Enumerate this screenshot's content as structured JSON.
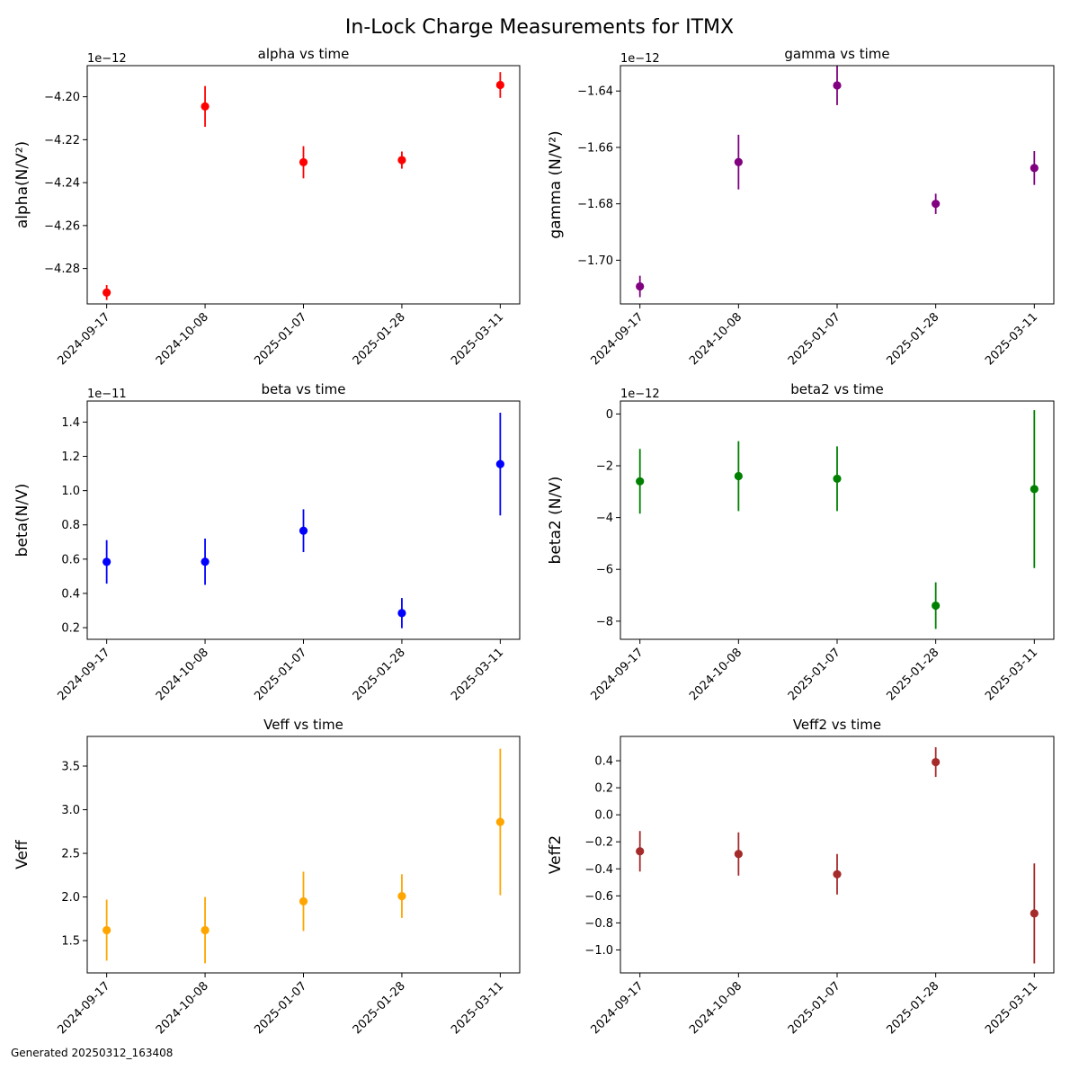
{
  "figure": {
    "title": "In-Lock Charge Measurements for ITMX",
    "footer": "Generated 20250312_163408"
  },
  "chart_data": [
    {
      "type": "scatter",
      "title": "alpha vs time",
      "ylabel": "alpha(N/V²)",
      "offset_label": "1e−12",
      "x": [
        "2024-09-17",
        "2024-10-08",
        "2025-01-07",
        "2025-01-28",
        "2025-03-11"
      ],
      "y": [
        -4.2912e-12,
        -4.2045e-12,
        -4.2305e-12,
        -4.2295e-12,
        -4.1945e-12
      ],
      "yerr": [
        3.5e-15,
        9.5e-15,
        7.5e-15,
        4e-15,
        6e-15
      ],
      "color": "#ff0000",
      "ylim": [
        -4.2965e-12,
        -4.1855e-12
      ],
      "yticks": [
        -4.28e-12,
        -4.26e-12,
        -4.24e-12,
        -4.22e-12,
        -4.2e-12
      ],
      "yticklabels": [
        "−4.28",
        "−4.26",
        "−4.24",
        "−4.22",
        "−4.20"
      ]
    },
    {
      "type": "scatter",
      "title": "gamma vs time",
      "ylabel": "gamma (N/V²)",
      "offset_label": "1e−12",
      "x": [
        "2024-09-17",
        "2024-10-08",
        "2025-01-07",
        "2025-01-28",
        "2025-03-11"
      ],
      "y": [
        -1.7093e-12,
        -1.6652e-12,
        -1.638e-12,
        -1.68e-12,
        -1.6673e-12
      ],
      "yerr": [
        3.8e-15,
        9.7e-15,
        7e-15,
        3.6e-15,
        6e-15
      ],
      "color": "#800080",
      "ylim": [
        -1.7155e-12,
        -1.631e-12
      ],
      "yticks": [
        -1.7e-12,
        -1.68e-12,
        -1.66e-12,
        -1.64e-12
      ],
      "yticklabels": [
        "−1.70",
        "−1.68",
        "−1.66",
        "−1.64"
      ]
    },
    {
      "type": "scatter",
      "title": "beta vs time",
      "ylabel": "beta(N/V)",
      "offset_label": "1e−11",
      "x": [
        "2024-09-17",
        "2024-10-08",
        "2025-01-07",
        "2025-01-28",
        "2025-03-11"
      ],
      "y": [
        5.84e-12,
        5.85e-12,
        7.66e-12,
        2.85e-12,
        1.155e-11
      ],
      "yerr": [
        1.27e-12,
        1.35e-12,
        1.25e-12,
        8.8e-13,
        3e-12
      ],
      "color": "#0000ff",
      "ylim": [
        1.32e-12,
        1.523e-11
      ],
      "yticks": [
        2e-12,
        4e-12,
        6e-12,
        8e-12,
        1e-11,
        1.2e-11,
        1.4e-11
      ],
      "yticklabels": [
        "0.2",
        "0.4",
        "0.6",
        "0.8",
        "1.0",
        "1.2",
        "1.4"
      ]
    },
    {
      "type": "scatter",
      "title": "beta2 vs time",
      "ylabel": "beta2 (N/V)",
      "offset_label": "1e−12",
      "x": [
        "2024-09-17",
        "2024-10-08",
        "2025-01-07",
        "2025-01-28",
        "2025-03-11"
      ],
      "y": [
        -2.6e-12,
        -2.4e-12,
        -2.5e-12,
        -7.4e-12,
        -2.9e-12
      ],
      "yerr": [
        1.25e-12,
        1.35e-12,
        1.25e-12,
        9e-13,
        3.05e-12
      ],
      "color": "#008000",
      "ylim": [
        -8.7e-12,
        5e-13
      ],
      "yticks": [
        -8e-12,
        -6e-12,
        -4e-12,
        -2e-12,
        0
      ],
      "yticklabels": [
        "−8",
        "−6",
        "−4",
        "−2",
        "0"
      ]
    },
    {
      "type": "scatter",
      "title": "Veff vs time",
      "ylabel": "Veff",
      "offset_label": "",
      "x": [
        "2024-09-17",
        "2024-10-08",
        "2025-01-07",
        "2025-01-28",
        "2025-03-11"
      ],
      "y": [
        1.62,
        1.62,
        1.95,
        2.01,
        2.86
      ],
      "yerr": [
        0.35,
        0.38,
        0.34,
        0.25,
        0.84
      ],
      "color": "#ffa500",
      "ylim": [
        1.13,
        3.84
      ],
      "yticks": [
        1.5,
        2.0,
        2.5,
        3.0,
        3.5
      ],
      "yticklabels": [
        "1.5",
        "2.0",
        "2.5",
        "3.0",
        "3.5"
      ]
    },
    {
      "type": "scatter",
      "title": "Veff2 vs time",
      "ylabel": "Veff2",
      "offset_label": "",
      "x": [
        "2024-09-17",
        "2024-10-08",
        "2025-01-07",
        "2025-01-28",
        "2025-03-11"
      ],
      "y": [
        -0.27,
        -0.29,
        -0.44,
        0.39,
        -0.73
      ],
      "yerr": [
        0.15,
        0.16,
        0.15,
        0.11,
        0.37
      ],
      "color": "#a52a2a",
      "ylim": [
        -1.17,
        0.58
      ],
      "yticks": [
        -1.0,
        -0.8,
        -0.6,
        -0.4,
        -0.2,
        0.0,
        0.2,
        0.4
      ],
      "yticklabels": [
        "−1.0",
        "−0.8",
        "−0.6",
        "−0.4",
        "−0.2",
        "0.0",
        "0.2",
        "0.4"
      ]
    }
  ]
}
